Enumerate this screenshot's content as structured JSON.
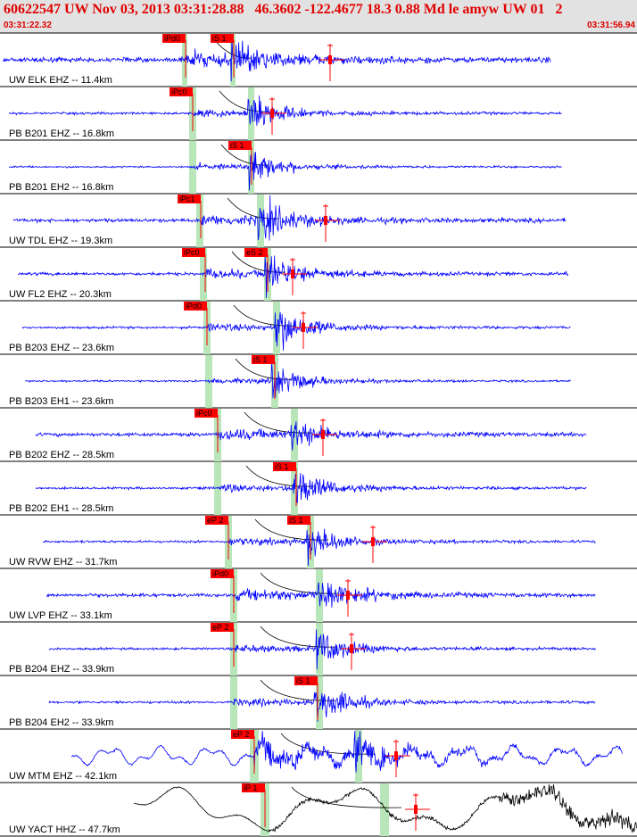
{
  "header": {
    "title": "60622547 UW Nov 03, 2013 03:31:28.88   46.3602 -122.4677 18.3 0.88 Md le amyw UW 01   2",
    "start_time": "03:31:22.32",
    "end_time": "03:31:56.94"
  },
  "colors": {
    "trace": "#0000ff",
    "trace_broadband": "#000000",
    "pick_box": "#ff0000",
    "pick_line": "#ff0000",
    "theoretical_band": "#b8e6b8",
    "moveout_curve": "#000000",
    "header_text": "#e00000",
    "header_bg": "#e2e2e2"
  },
  "traces": [
    {
      "label": "UW ELK EHZ -- 11.4km",
      "p_pick": "iPd0",
      "s_pick": "iS 1"
    },
    {
      "label": "PB B201 EHZ -- 16.8km",
      "p_pick": "iPc0",
      "s_pick": ""
    },
    {
      "label": "PB B201 EH2 -- 16.8km",
      "p_pick": "",
      "s_pick": "iS 1"
    },
    {
      "label": "UW TDL EHZ -- 19.3km",
      "p_pick": "iPc1",
      "s_pick": ""
    },
    {
      "label": "UW FL2 EHZ -- 20.3km",
      "p_pick": "iPc0",
      "s_pick": "eS 2"
    },
    {
      "label": "PB B203 EHZ -- 23.6km",
      "p_pick": "iPd0",
      "s_pick": ""
    },
    {
      "label": "PB B203 EH1 -- 23.6km",
      "p_pick": "",
      "s_pick": "iS 1"
    },
    {
      "label": "PB B202 EHZ -- 28.5km",
      "p_pick": "iPc0",
      "s_pick": ""
    },
    {
      "label": "PB B202 EH1 -- 28.5km",
      "p_pick": "",
      "s_pick": "iS 1"
    },
    {
      "label": "UW RVW EHZ -- 31.7km",
      "p_pick": "eP 2",
      "s_pick": "iS 1"
    },
    {
      "label": "UW LVP EHZ -- 33.1km",
      "p_pick": "iPd0",
      "s_pick": ""
    },
    {
      "label": "PB B204 EHZ -- 33.9km",
      "p_pick": "eP 2",
      "s_pick": ""
    },
    {
      "label": "PB B204 EH2 -- 33.9km",
      "p_pick": "",
      "s_pick": "iS 1"
    },
    {
      "label": "UW MTM EHZ -- 42.1km",
      "p_pick": "eP 2",
      "s_pick": ""
    },
    {
      "label": "UW YACT HHZ -- 47.7km",
      "p_pick": "iP 1",
      "s_pick": ""
    }
  ]
}
